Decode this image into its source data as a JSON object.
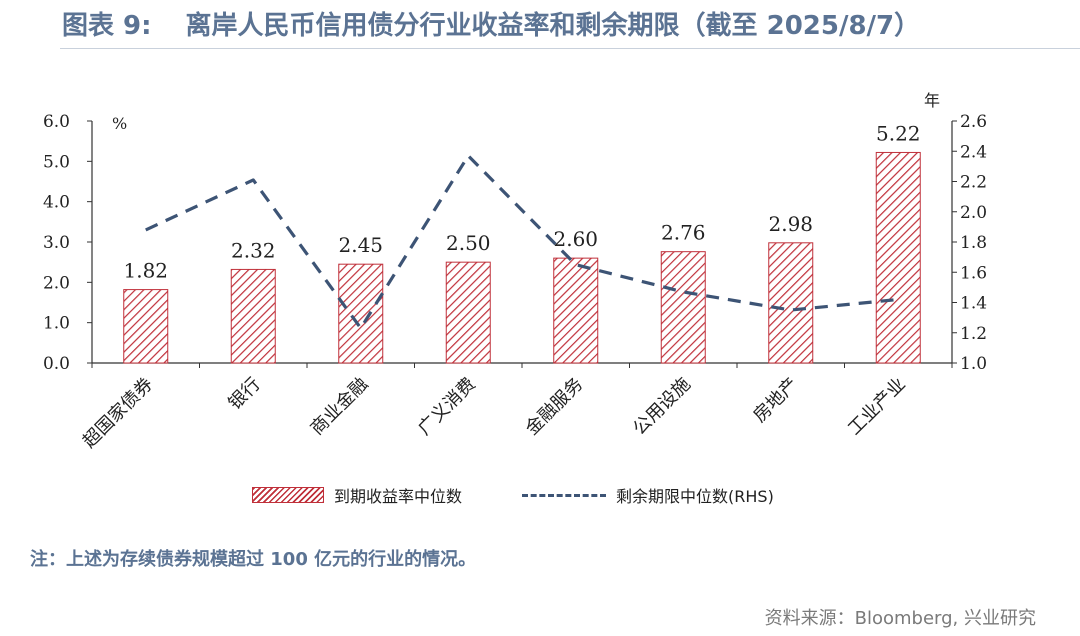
{
  "header": {
    "fig_label": "图表 9:",
    "title": "离岸人民币信用债分行业收益率和剩余期限（截至 2025/8/7）"
  },
  "note": "注：上述为存续债券规模超过 100 亿元的行业的情况。",
  "source": "资料来源：Bloomberg, 兴业研究",
  "colors": {
    "bar": "#c0303a",
    "line": "#3d5475",
    "axis": "#333333"
  },
  "chart_data": {
    "type": "bar",
    "categories": [
      "超国家债券",
      "银行",
      "商业金融",
      "广义消费",
      "金融服务",
      "公用设施",
      "房地产",
      "工业产业"
    ],
    "series": [
      {
        "name": "到期收益率中位数",
        "kind": "bar",
        "axis": "left",
        "values": [
          1.82,
          2.32,
          2.45,
          2.5,
          2.6,
          2.76,
          2.98,
          5.22
        ],
        "labels": [
          "1.82",
          "2.32",
          "2.45",
          "2.50",
          "2.60",
          "2.76",
          "2.98",
          "5.22"
        ]
      },
      {
        "name": "剩余期限中位数(RHS)",
        "kind": "line",
        "style": "dashed",
        "axis": "right",
        "values": [
          1.88,
          2.21,
          1.23,
          2.37,
          1.65,
          1.47,
          1.35,
          1.42
        ]
      }
    ],
    "left_axis": {
      "unit": "%",
      "ylim": [
        0,
        6
      ],
      "ticks": [
        "0.0",
        "1.0",
        "2.0",
        "3.0",
        "4.0",
        "5.0",
        "6.0"
      ]
    },
    "right_axis": {
      "unit": "年",
      "ylim": [
        1.0,
        2.6
      ],
      "ticks": [
        "1.0",
        "1.2",
        "1.4",
        "1.6",
        "1.8",
        "2.0",
        "2.2",
        "2.4",
        "2.6"
      ]
    },
    "legend_position": "bottom"
  }
}
